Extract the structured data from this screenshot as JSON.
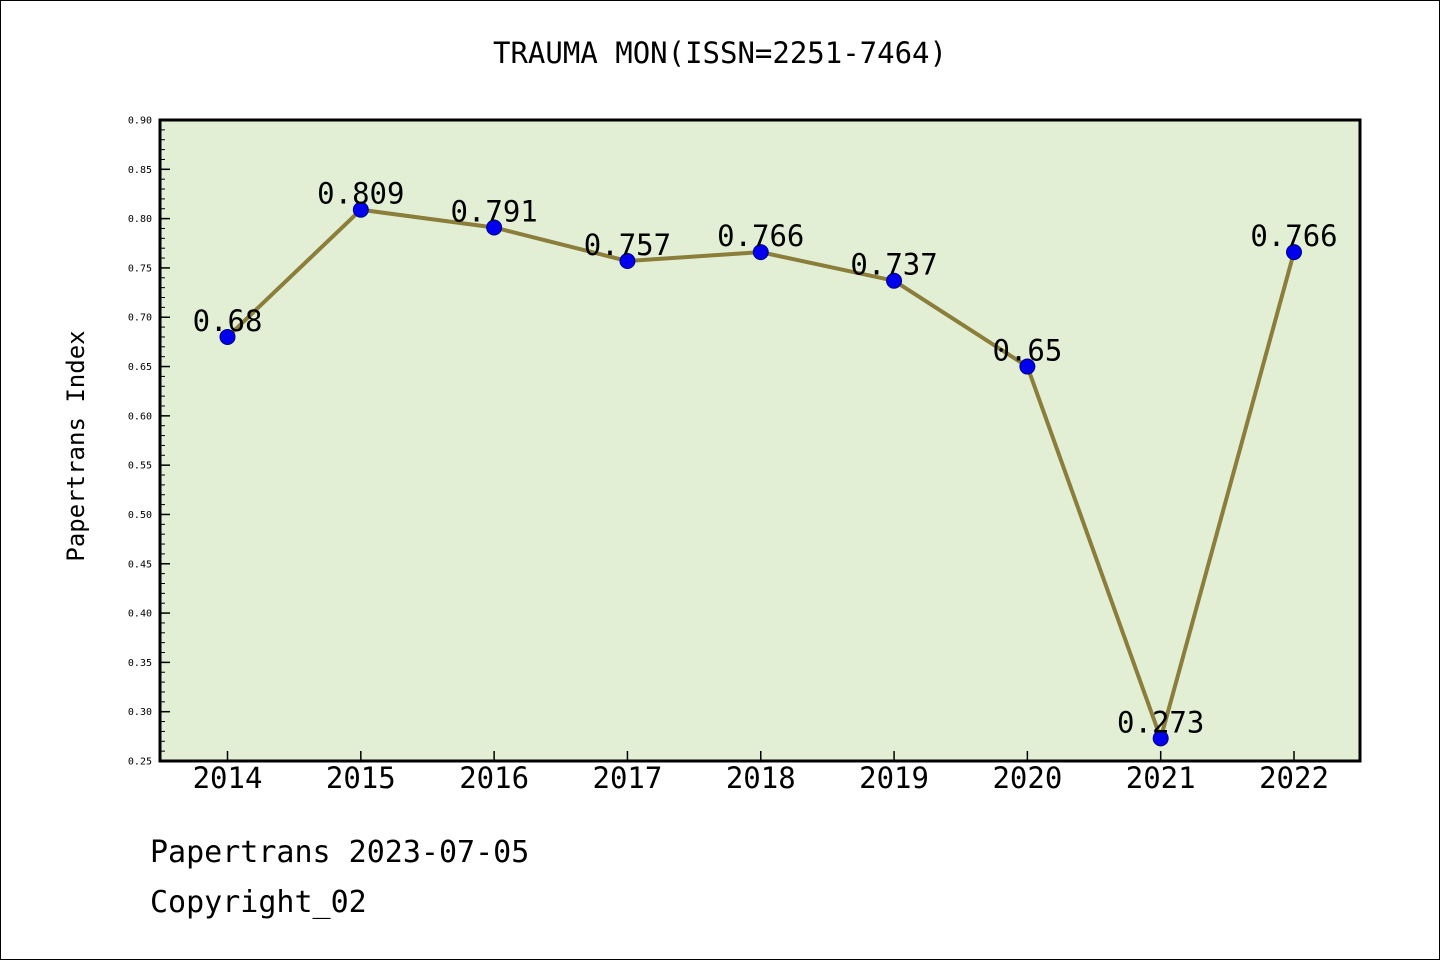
{
  "chart_data": {
    "type": "line",
    "title": "TRAUMA MON(ISSN=2251-7464)",
    "xlabel": "",
    "ylabel": "Papertrans Index",
    "categories": [
      "2014",
      "2015",
      "2016",
      "2017",
      "2018",
      "2019",
      "2020",
      "2021",
      "2022"
    ],
    "series": [
      {
        "values": [
          0.68,
          0.809,
          0.791,
          0.757,
          0.766,
          0.737,
          0.65,
          0.273,
          0.766
        ],
        "data_labels": [
          "0.68",
          "0.809",
          "0.791",
          "0.757",
          "0.766",
          "0.737",
          "0.65",
          "0.273",
          "0.766"
        ]
      }
    ],
    "ylim": [
      0.25,
      0.9
    ],
    "yticks": [
      "0.25",
      "0.30",
      "0.35",
      "0.40",
      "0.45",
      "0.50",
      "0.55",
      "0.60",
      "0.65",
      "0.70",
      "0.75",
      "0.80",
      "0.85",
      "0.90"
    ],
    "grid": false,
    "legend": "none",
    "colors": {
      "plot_background": "#e2efd5",
      "line": "#8b7d3a",
      "marker": "#0000ee",
      "axis": "#000000"
    }
  },
  "footer": {
    "date_line": "Papertrans 2023-07-05",
    "copyright_line": "Copyright_02"
  }
}
